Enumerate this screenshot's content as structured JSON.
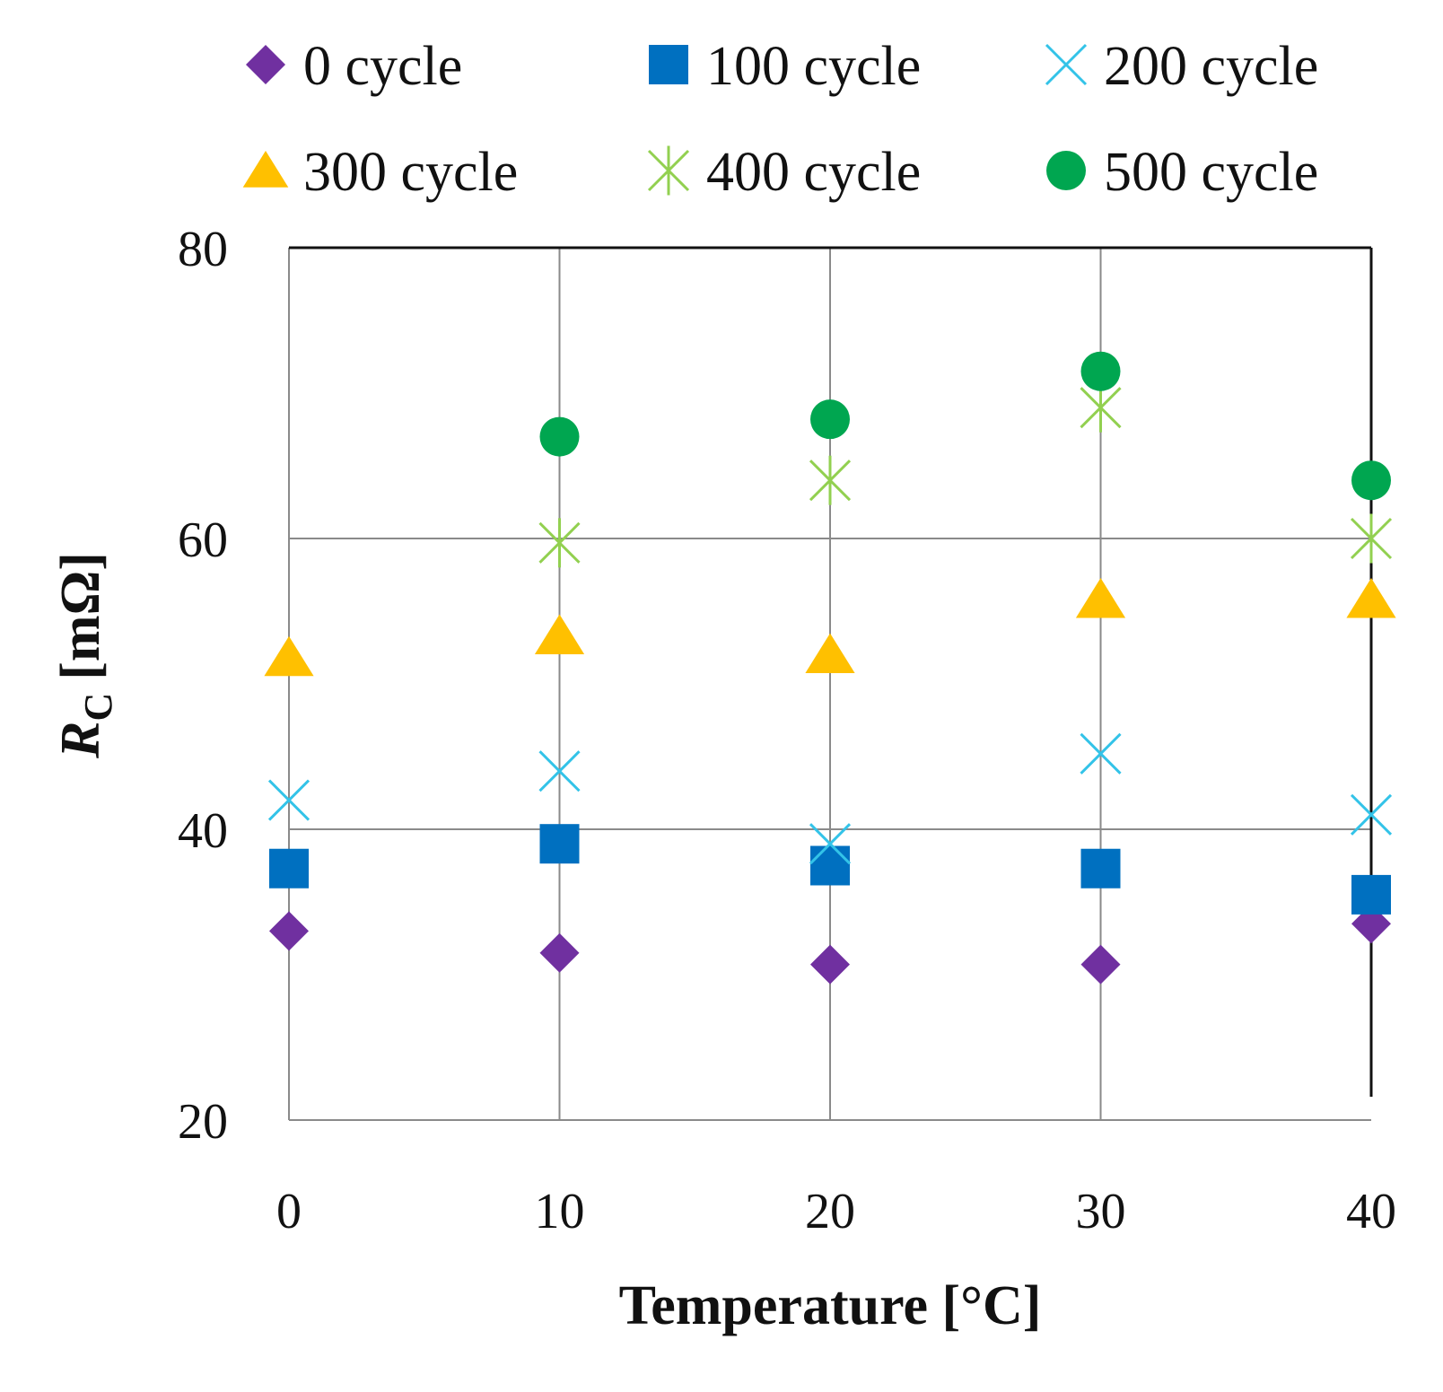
{
  "chart_data": {
    "type": "scatter",
    "title": "",
    "xlabel": "Temperature [°C]",
    "ylabel_main": "R",
    "ylabel_sub": "C",
    "ylabel_units": "[mΩ]",
    "x": [
      0,
      10,
      20,
      30,
      40
    ],
    "xlim": [
      0,
      40
    ],
    "ylim": [
      20,
      80
    ],
    "xticks": [
      "0",
      "10",
      "20",
      "30",
      "40"
    ],
    "yticks": [
      "20",
      "40",
      "60",
      "80"
    ],
    "grid": true,
    "legend_position": "top",
    "series": [
      {
        "name": "0 cycle",
        "marker": "diamond",
        "color": "#7030a0",
        "values": [
          33.0,
          31.5,
          30.7,
          30.7,
          33.5
        ]
      },
      {
        "name": "100 cycle",
        "marker": "square",
        "color": "#0070c0",
        "values": [
          37.3,
          39.0,
          37.5,
          37.3,
          35.5
        ]
      },
      {
        "name": "200 cycle",
        "marker": "x",
        "color": "#33c3e8",
        "values": [
          42.0,
          44.0,
          39.0,
          45.2,
          41.0
        ]
      },
      {
        "name": "300 cycle",
        "marker": "triangle",
        "color": "#ffc000",
        "values": [
          51.8,
          53.3,
          52.0,
          55.8,
          55.8
        ]
      },
      {
        "name": "400 cycle",
        "marker": "star",
        "color": "#92d050",
        "values": null,
        "values_present": [
          null,
          59.7,
          64.0,
          69.0,
          60.0
        ]
      },
      {
        "name": "500 cycle",
        "marker": "circle",
        "color": "#00a650",
        "values_present": [
          null,
          67.0,
          68.2,
          71.5,
          64.0
        ]
      }
    ]
  }
}
